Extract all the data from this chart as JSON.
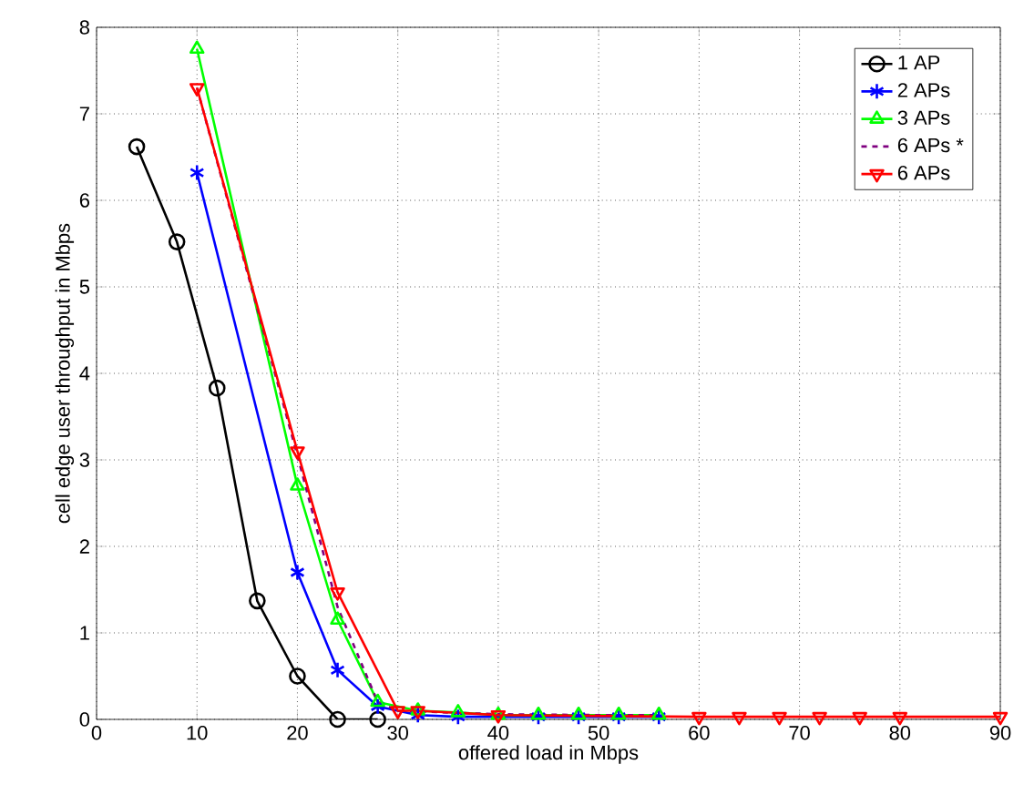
{
  "chart_data": {
    "type": "line",
    "xlabel": "offered load in Mbps",
    "ylabel": "cell edge user throughput in Mbps",
    "xlim": [
      0,
      90
    ],
    "ylim": [
      0,
      8
    ],
    "xticks": [
      0,
      10,
      20,
      30,
      40,
      50,
      60,
      70,
      80,
      90
    ],
    "yticks": [
      0,
      1,
      2,
      3,
      4,
      5,
      6,
      7,
      8
    ],
    "grid": true,
    "legend": "top right",
    "series": [
      {
        "name": "1 AP",
        "color": "#000000",
        "marker": "circle",
        "x": [
          4,
          8,
          12,
          16,
          20,
          24,
          28
        ],
        "values": [
          6.62,
          5.52,
          3.83,
          1.37,
          0.5,
          0,
          0
        ]
      },
      {
        "name": "2 APs",
        "color": "#0000ff",
        "marker": "cross",
        "x": [
          10,
          20,
          24,
          28,
          32,
          36,
          40,
          44,
          48,
          52,
          56
        ],
        "values": [
          6.32,
          1.7,
          0.57,
          0.15,
          0.05,
          0.03,
          null,
          0.03,
          0.03,
          0.03,
          0.03
        ]
      },
      {
        "name": "3 APs",
        "color": "#00ff00",
        "marker": "triangle",
        "x": [
          10,
          20,
          24,
          28,
          32,
          36,
          40,
          44,
          48,
          52,
          56
        ],
        "values": [
          7.75,
          2.7,
          1.15,
          0.2,
          0.1,
          0.08,
          0.05,
          0.05,
          0.05,
          0.05,
          0.05
        ]
      },
      {
        "name": "6 APs *",
        "color": "#800080",
        "marker": "none",
        "line_style": "dashed",
        "x": [
          10,
          20,
          24,
          28,
          30,
          40,
          50,
          56
        ],
        "values": [
          7.3,
          3.05,
          1.3,
          0.2,
          0.1,
          0.06,
          0.05,
          0.05
        ]
      },
      {
        "name": "6 APs",
        "color": "#ff0000",
        "marker": "triangle down",
        "x": [
          10,
          20,
          24,
          30,
          32,
          40,
          60,
          64,
          68,
          72,
          76,
          80,
          90
        ],
        "values": [
          7.3,
          3.1,
          1.47,
          0.1,
          0.1,
          0.05,
          0.03,
          0.03,
          0.03,
          0.03,
          0.03,
          0.03,
          0.03
        ]
      }
    ]
  }
}
